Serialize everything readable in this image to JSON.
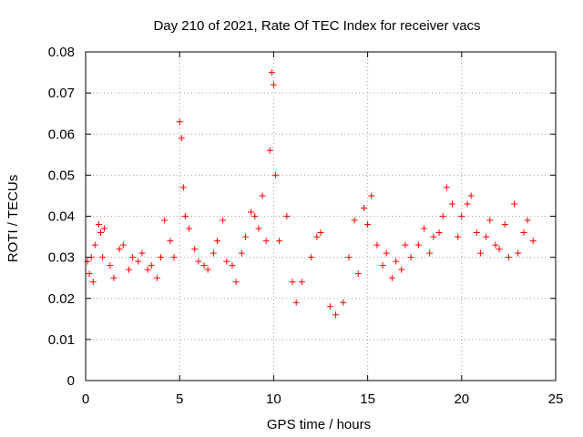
{
  "chart_data": {
    "type": "scatter",
    "title": "Day 210 of 2021, Rate Of TEC Index for receiver vacs",
    "xlabel": "GPS time / hours",
    "ylabel": "ROTI / TECUs",
    "xlim": [
      0,
      25
    ],
    "ylim": [
      0,
      0.08
    ],
    "xticks": [
      0,
      5,
      10,
      15,
      20,
      25
    ],
    "yticks": [
      0,
      0.01,
      0.02,
      0.03,
      0.04,
      0.05,
      0.06,
      0.07,
      0.08
    ],
    "ytick_labels": [
      "0",
      "0.01",
      "0.02",
      "0.03",
      "0.04",
      "0.05",
      "0.06",
      "0.07",
      "0.08"
    ],
    "grid": true,
    "marker": "+",
    "colors": {
      "series": "#ff0000",
      "grid": "#a0a0a0",
      "frame": "#000000"
    },
    "series": [
      {
        "x": [
          0.1,
          0.2,
          0.3,
          0.4,
          0.5,
          0.7,
          0.8,
          0.9,
          1.0,
          1.3,
          1.5,
          1.8,
          2.0,
          2.3,
          2.5,
          2.8,
          3.0,
          3.3,
          3.5,
          3.8,
          4.0,
          4.2,
          4.5,
          4.7,
          5.0,
          5.1,
          5.2,
          5.3,
          5.5,
          5.8,
          6.0,
          6.3,
          6.5,
          6.8,
          7.0,
          7.3,
          7.5,
          7.8,
          8.0,
          8.3,
          8.5,
          8.8,
          9.0,
          9.2,
          9.4,
          9.6,
          9.8,
          9.9,
          10.0,
          10.1,
          10.3,
          10.7,
          11.0,
          11.2,
          11.5,
          12.0,
          12.3,
          12.5,
          13.0,
          13.3,
          13.7,
          14.0,
          14.3,
          14.5,
          14.8,
          15.0,
          15.2,
          15.5,
          15.8,
          16.0,
          16.3,
          16.5,
          16.8,
          17.0,
          17.3,
          17.7,
          18.0,
          18.3,
          18.5,
          18.8,
          19.0,
          19.2,
          19.5,
          19.8,
          20.0,
          20.3,
          20.5,
          20.8,
          21.0,
          21.3,
          21.5,
          21.8,
          22.0,
          22.3,
          22.5,
          22.8,
          23.0,
          23.3,
          23.5,
          23.8
        ],
        "y": [
          0.029,
          0.026,
          0.03,
          0.024,
          0.033,
          0.038,
          0.036,
          0.03,
          0.037,
          0.028,
          0.025,
          0.032,
          0.033,
          0.027,
          0.03,
          0.029,
          0.031,
          0.027,
          0.028,
          0.025,
          0.03,
          0.039,
          0.034,
          0.03,
          0.063,
          0.059,
          0.047,
          0.04,
          0.037,
          0.032,
          0.029,
          0.028,
          0.027,
          0.031,
          0.034,
          0.039,
          0.029,
          0.028,
          0.024,
          0.031,
          0.035,
          0.041,
          0.04,
          0.037,
          0.045,
          0.034,
          0.056,
          0.075,
          0.072,
          0.05,
          0.034,
          0.04,
          0.024,
          0.019,
          0.024,
          0.03,
          0.035,
          0.036,
          0.018,
          0.016,
          0.019,
          0.03,
          0.039,
          0.026,
          0.042,
          0.038,
          0.045,
          0.033,
          0.028,
          0.031,
          0.025,
          0.029,
          0.027,
          0.033,
          0.03,
          0.033,
          0.037,
          0.031,
          0.035,
          0.036,
          0.04,
          0.047,
          0.043,
          0.035,
          0.04,
          0.043,
          0.045,
          0.036,
          0.031,
          0.035,
          0.039,
          0.033,
          0.032,
          0.038,
          0.03,
          0.043,
          0.031,
          0.036,
          0.039,
          0.034
        ]
      }
    ]
  }
}
